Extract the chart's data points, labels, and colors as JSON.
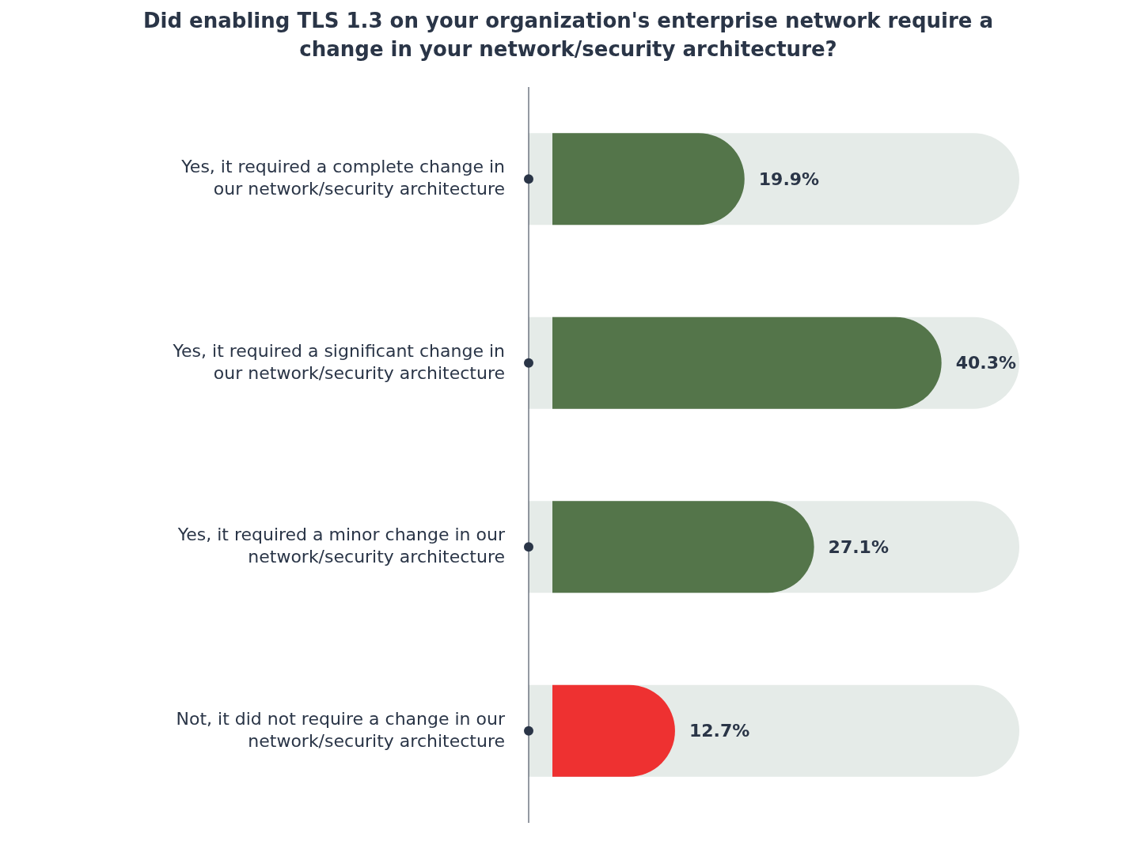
{
  "chart_data": {
    "type": "bar",
    "orientation": "horizontal",
    "title": "Did enabling TLS 1.3 on your organization's enterprise network require a change in your network/security architecture?",
    "categories": [
      "Yes, it required a complete change in our network/security architecture",
      "Yes, it required a significant change in our network/security architecture",
      "Yes, it required a minor change in our network/security architecture",
      "Not, it did not require a change in our network/security architecture"
    ],
    "values": [
      19.9,
      40.3,
      27.1,
      12.7
    ],
    "colors": [
      "#54754a",
      "#54754a",
      "#54754a",
      "#ee3131"
    ],
    "value_labels": [
      "19.9%",
      "40.3%",
      "27.1%",
      "12.7%"
    ],
    "grid": false,
    "legend": false
  }
}
